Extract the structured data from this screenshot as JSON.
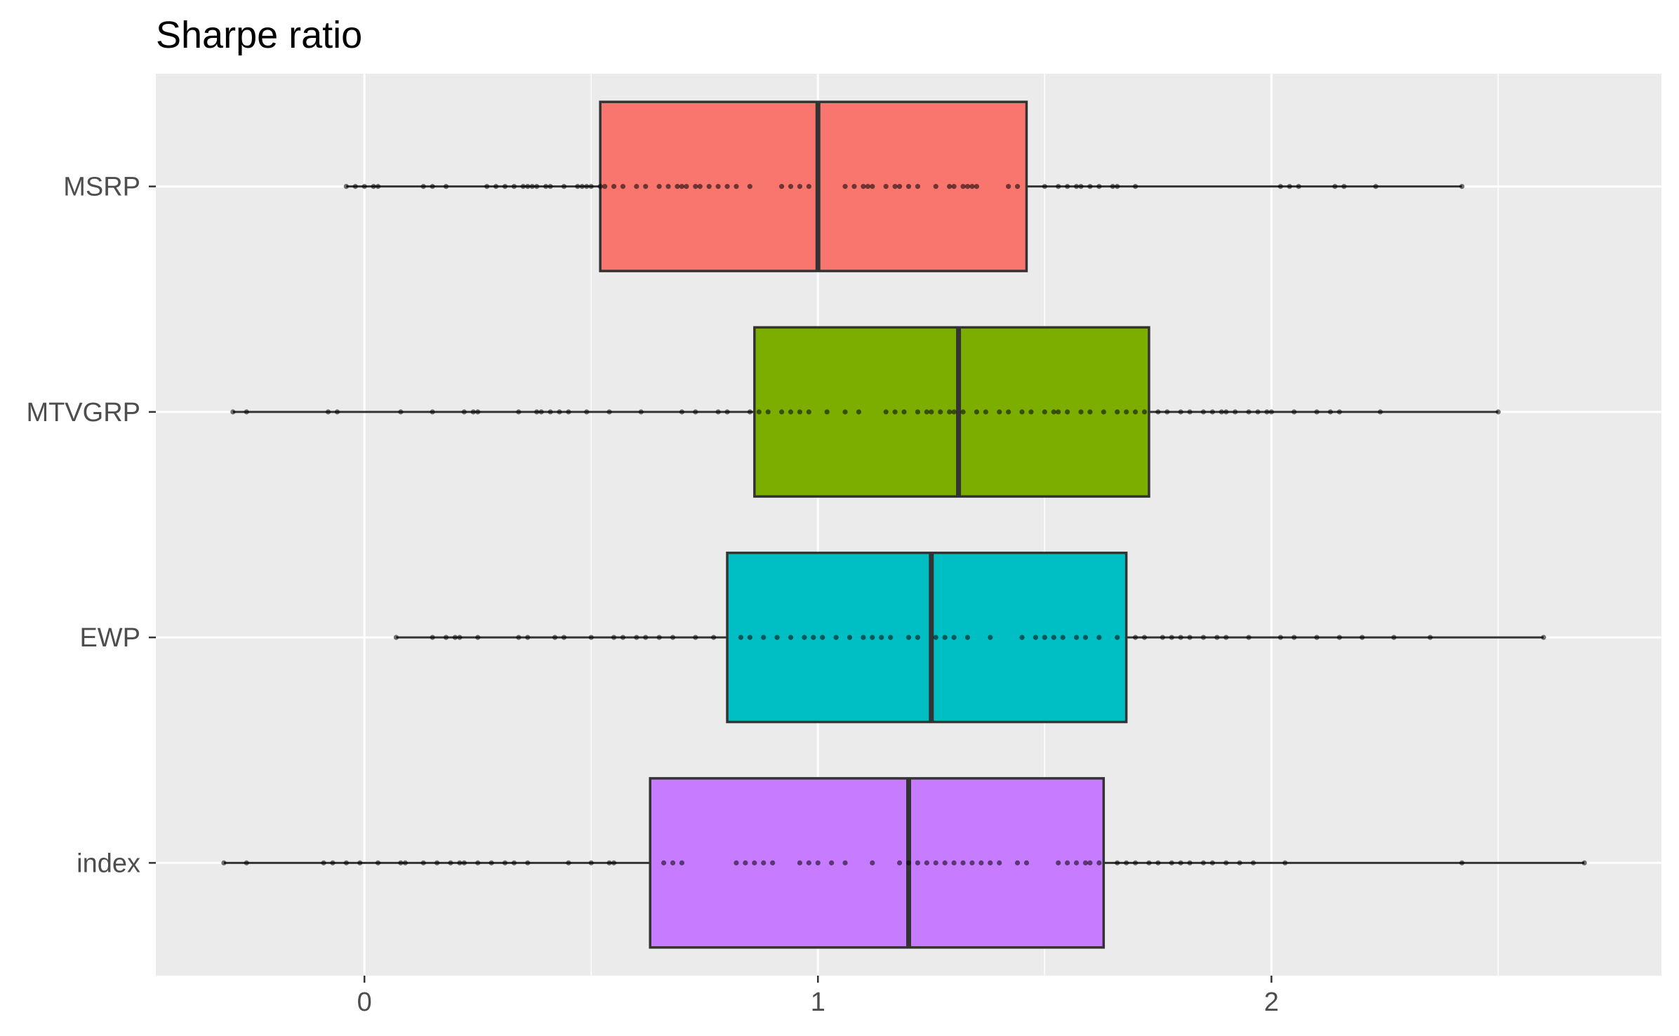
{
  "chart_data": {
    "type": "boxplot",
    "title": "Sharpe ratio",
    "xlabel": "",
    "ylabel": "",
    "orientation": "horizontal",
    "xlim": [
      -0.46,
      2.86
    ],
    "x_ticks": [
      0,
      1,
      2
    ],
    "x_minor_ticks": [
      -0.5,
      0.5,
      1.5,
      2.5
    ],
    "grid": true,
    "legend": "none",
    "categories": [
      "MSRP",
      "MTVGRP",
      "EWP",
      "index"
    ],
    "series": [
      {
        "fill": "#F8766D",
        "min": -0.04,
        "q1": 0.52,
        "median": 1.0,
        "q3": 1.46,
        "max": 2.42,
        "points": [
          -0.04,
          -0.02,
          0.0,
          0.02,
          0.03,
          0.13,
          0.15,
          0.18,
          0.27,
          0.29,
          0.31,
          0.33,
          0.35,
          0.36,
          0.37,
          0.38,
          0.4,
          0.41,
          0.44,
          0.47,
          0.48,
          0.49,
          0.5,
          0.52,
          0.53,
          0.55,
          0.57,
          0.6,
          0.62,
          0.65,
          0.67,
          0.69,
          0.7,
          0.71,
          0.73,
          0.74,
          0.76,
          0.78,
          0.8,
          0.82,
          0.85,
          0.92,
          0.94,
          0.96,
          0.98,
          1.06,
          1.08,
          1.1,
          1.11,
          1.12,
          1.15,
          1.17,
          1.18,
          1.2,
          1.22,
          1.26,
          1.29,
          1.3,
          1.32,
          1.33,
          1.34,
          1.35,
          1.42,
          1.44,
          1.5,
          1.53,
          1.55,
          1.57,
          1.58,
          1.6,
          1.62,
          1.65,
          1.66,
          1.7,
          2.02,
          2.04,
          2.06,
          2.14,
          2.16,
          2.23,
          2.42
        ]
      },
      {
        "fill": "#7CAE00",
        "min": -0.29,
        "q1": 0.86,
        "median": 1.31,
        "q3": 1.73,
        "max": 2.5,
        "points": [
          -0.29,
          -0.26,
          -0.08,
          -0.06,
          0.08,
          0.15,
          0.22,
          0.24,
          0.25,
          0.34,
          0.38,
          0.39,
          0.41,
          0.43,
          0.45,
          0.49,
          0.54,
          0.61,
          0.7,
          0.73,
          0.78,
          0.8,
          0.85,
          0.87,
          0.89,
          0.92,
          0.94,
          0.96,
          0.98,
          1.02,
          1.06,
          1.09,
          1.15,
          1.17,
          1.19,
          1.22,
          1.24,
          1.25,
          1.27,
          1.29,
          1.3,
          1.32,
          1.35,
          1.37,
          1.4,
          1.42,
          1.45,
          1.47,
          1.5,
          1.52,
          1.53,
          1.55,
          1.58,
          1.6,
          1.63,
          1.66,
          1.68,
          1.7,
          1.72,
          1.75,
          1.77,
          1.8,
          1.82,
          1.85,
          1.87,
          1.89,
          1.9,
          1.92,
          1.95,
          1.97,
          1.99,
          2.0,
          2.05,
          2.1,
          2.13,
          2.15,
          2.24,
          2.5
        ]
      },
      {
        "fill": "#00BFC4",
        "min": 0.07,
        "q1": 0.8,
        "median": 1.25,
        "q3": 1.68,
        "max": 2.6,
        "points": [
          0.07,
          0.15,
          0.18,
          0.2,
          0.21,
          0.25,
          0.34,
          0.36,
          0.42,
          0.44,
          0.5,
          0.55,
          0.57,
          0.6,
          0.62,
          0.65,
          0.68,
          0.73,
          0.77,
          0.83,
          0.85,
          0.88,
          0.91,
          0.94,
          0.97,
          0.99,
          1.01,
          1.04,
          1.07,
          1.1,
          1.12,
          1.14,
          1.16,
          1.2,
          1.22,
          1.26,
          1.28,
          1.3,
          1.33,
          1.38,
          1.45,
          1.48,
          1.5,
          1.52,
          1.54,
          1.57,
          1.59,
          1.62,
          1.66,
          1.7,
          1.72,
          1.76,
          1.78,
          1.8,
          1.82,
          1.85,
          1.88,
          1.9,
          1.95,
          2.02,
          2.05,
          2.1,
          2.15,
          2.2,
          2.27,
          2.35,
          2.6
        ]
      },
      {
        "fill": "#C77CFF",
        "min": -0.31,
        "q1": 0.63,
        "median": 1.2,
        "q3": 1.63,
        "max": 2.69,
        "points": [
          -0.31,
          -0.26,
          -0.09,
          -0.07,
          -0.04,
          -0.01,
          0.03,
          0.08,
          0.09,
          0.13,
          0.16,
          0.19,
          0.21,
          0.22,
          0.25,
          0.28,
          0.31,
          0.33,
          0.36,
          0.45,
          0.5,
          0.54,
          0.55,
          0.66,
          0.68,
          0.7,
          0.82,
          0.84,
          0.86,
          0.88,
          0.9,
          0.96,
          0.98,
          1.0,
          1.03,
          1.06,
          1.12,
          1.18,
          1.2,
          1.22,
          1.24,
          1.26,
          1.28,
          1.3,
          1.32,
          1.34,
          1.36,
          1.38,
          1.4,
          1.44,
          1.46,
          1.53,
          1.55,
          1.57,
          1.59,
          1.6,
          1.62,
          1.66,
          1.68,
          1.7,
          1.73,
          1.75,
          1.78,
          1.8,
          1.82,
          1.85,
          1.87,
          1.9,
          1.93,
          1.96,
          2.03,
          2.42,
          2.69
        ]
      }
    ]
  }
}
